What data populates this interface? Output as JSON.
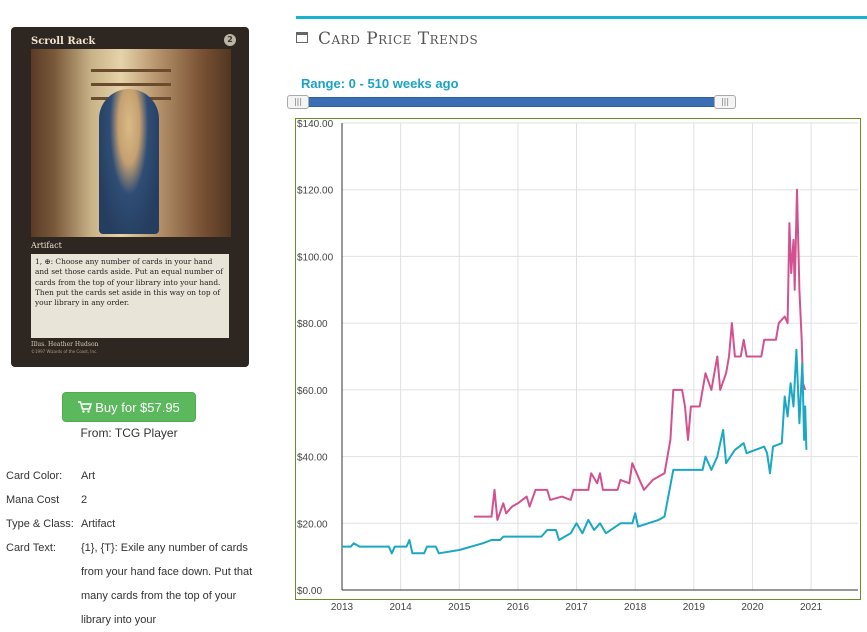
{
  "card_image": {
    "name": "Scroll Rack",
    "cost_symbol": "2",
    "type_line": "Artifact",
    "rules_text": "1, ⊕: Choose any number of cards in your hand and set those cards aside. Put an equal number of cards from the top of your library into your hand. Then put the cards set aside in this way on top of your library in any order.",
    "artist": "Illus. Heather Hudson",
    "copyright": "©1997 Wizards of the Coast, Inc."
  },
  "buy": {
    "label": "Buy for $57.95",
    "from": "From: TCG Player",
    "color": "#5cb85c"
  },
  "details": [
    {
      "label": "Card Color:",
      "value": "Art"
    },
    {
      "label": "Mana Cost",
      "value": "2"
    },
    {
      "label": "Type & Class:",
      "value": "Artifact"
    },
    {
      "label": "Card Text:",
      "value": "{1}, {T}: Exile any number of cards from your hand face down. Put that many cards from the top of your library into your"
    }
  ],
  "section_title": "Card Price Trends",
  "range_label": "Range: 0 - 510 weeks ago",
  "accent_color": "#1ab3cf",
  "chart_data": {
    "type": "line",
    "title": "",
    "xlabel": "",
    "ylabel": "",
    "x_ticks": [
      "2013",
      "2014",
      "2015",
      "2016",
      "2017",
      "2018",
      "2019",
      "2020",
      "2021"
    ],
    "y_ticks": [
      "$0.00",
      "$20.00",
      "$40.00",
      "$60.00",
      "$80.00",
      "$100.00",
      "$120.00",
      "$140.00"
    ],
    "xlim": [
      2013,
      2021.8
    ],
    "ylim": [
      0,
      140
    ],
    "grid": true,
    "series": [
      {
        "color": "#d2528f",
        "points": [
          [
            2015.25,
            22
          ],
          [
            2015.55,
            22
          ],
          [
            2015.6,
            30
          ],
          [
            2015.65,
            21
          ],
          [
            2015.75,
            26
          ],
          [
            2015.8,
            23
          ],
          [
            2015.9,
            25
          ],
          [
            2016.0,
            26
          ],
          [
            2016.15,
            28
          ],
          [
            2016.2,
            25
          ],
          [
            2016.3,
            30
          ],
          [
            2016.5,
            30
          ],
          [
            2016.55,
            27
          ],
          [
            2016.75,
            28
          ],
          [
            2016.9,
            27
          ],
          [
            2016.95,
            30
          ],
          [
            2017.2,
            30
          ],
          [
            2017.25,
            35
          ],
          [
            2017.35,
            32
          ],
          [
            2017.4,
            35
          ],
          [
            2017.45,
            30
          ],
          [
            2017.7,
            30
          ],
          [
            2017.75,
            33
          ],
          [
            2017.9,
            32
          ],
          [
            2017.95,
            38
          ],
          [
            2018.1,
            32
          ],
          [
            2018.15,
            30
          ],
          [
            2018.3,
            33
          ],
          [
            2018.5,
            35
          ],
          [
            2018.6,
            45
          ],
          [
            2018.65,
            60
          ],
          [
            2018.8,
            60
          ],
          [
            2018.85,
            55
          ],
          [
            2018.9,
            45
          ],
          [
            2018.95,
            55
          ],
          [
            2019.1,
            55
          ],
          [
            2019.2,
            65
          ],
          [
            2019.3,
            60
          ],
          [
            2019.4,
            70
          ],
          [
            2019.45,
            60
          ],
          [
            2019.55,
            65
          ],
          [
            2019.6,
            70
          ],
          [
            2019.65,
            80
          ],
          [
            2019.7,
            70
          ],
          [
            2019.8,
            70
          ],
          [
            2019.85,
            75
          ],
          [
            2019.9,
            70
          ],
          [
            2020.15,
            70
          ],
          [
            2020.2,
            75
          ],
          [
            2020.4,
            75
          ],
          [
            2020.45,
            80
          ],
          [
            2020.55,
            82
          ],
          [
            2020.6,
            80
          ],
          [
            2020.63,
            110
          ],
          [
            2020.66,
            95
          ],
          [
            2020.7,
            105
          ],
          [
            2020.72,
            90
          ],
          [
            2020.76,
            120
          ],
          [
            2020.8,
            90
          ],
          [
            2020.84,
            75
          ],
          [
            2020.86,
            62
          ],
          [
            2020.9,
            60
          ]
        ]
      },
      {
        "color": "#1aa8c4",
        "points": [
          [
            2013.0,
            13
          ],
          [
            2013.15,
            13
          ],
          [
            2013.2,
            14
          ],
          [
            2013.3,
            13
          ],
          [
            2013.8,
            13
          ],
          [
            2013.85,
            11
          ],
          [
            2013.9,
            13
          ],
          [
            2014.1,
            13
          ],
          [
            2014.15,
            15
          ],
          [
            2014.2,
            11
          ],
          [
            2014.4,
            11
          ],
          [
            2014.45,
            13
          ],
          [
            2014.6,
            13
          ],
          [
            2014.65,
            11
          ],
          [
            2015.0,
            12
          ],
          [
            2015.4,
            14
          ],
          [
            2015.55,
            15
          ],
          [
            2015.7,
            15
          ],
          [
            2015.75,
            16
          ],
          [
            2016.2,
            16
          ],
          [
            2016.4,
            16
          ],
          [
            2016.5,
            18
          ],
          [
            2016.65,
            18
          ],
          [
            2016.7,
            15
          ],
          [
            2016.9,
            17
          ],
          [
            2017.0,
            20
          ],
          [
            2017.1,
            17
          ],
          [
            2017.2,
            21
          ],
          [
            2017.3,
            18
          ],
          [
            2017.4,
            20
          ],
          [
            2017.5,
            17
          ],
          [
            2017.75,
            20
          ],
          [
            2017.95,
            20
          ],
          [
            2018.0,
            23
          ],
          [
            2018.05,
            19
          ],
          [
            2018.4,
            21
          ],
          [
            2018.5,
            22
          ],
          [
            2018.65,
            36
          ],
          [
            2019.15,
            36
          ],
          [
            2019.2,
            40
          ],
          [
            2019.3,
            36
          ],
          [
            2019.4,
            40
          ],
          [
            2019.5,
            48
          ],
          [
            2019.55,
            38
          ],
          [
            2019.7,
            42
          ],
          [
            2019.85,
            44
          ],
          [
            2019.9,
            41
          ],
          [
            2020.2,
            43
          ],
          [
            2020.25,
            41
          ],
          [
            2020.3,
            35
          ],
          [
            2020.35,
            43
          ],
          [
            2020.5,
            44
          ],
          [
            2020.55,
            58
          ],
          [
            2020.6,
            52
          ],
          [
            2020.65,
            62
          ],
          [
            2020.7,
            55
          ],
          [
            2020.75,
            72
          ],
          [
            2020.8,
            50
          ],
          [
            2020.85,
            68
          ],
          [
            2020.88,
            45
          ],
          [
            2020.9,
            55
          ],
          [
            2020.92,
            42
          ]
        ]
      }
    ]
  }
}
